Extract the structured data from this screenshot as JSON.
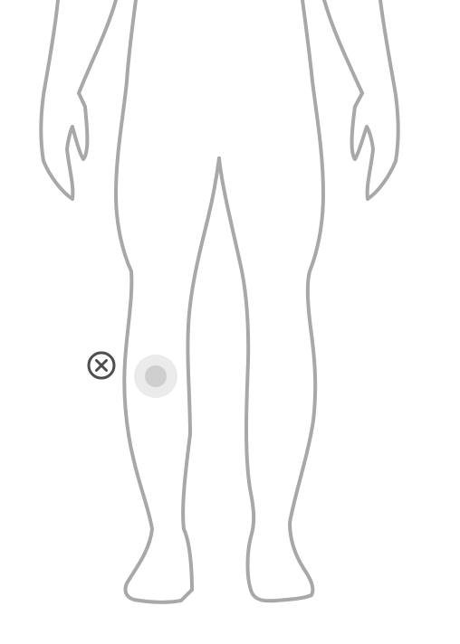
{
  "figure": {
    "view": "front-lower-body",
    "outline_color": "#a8a8a8",
    "background_color": "#ffffff"
  },
  "markers": [
    {
      "region": "left-knee",
      "halo_color": "#ebebeb",
      "dot_color": "#cfcfcf"
    }
  ],
  "remove_control": {
    "icon": "close-circle-icon",
    "color": "#4d4d4d"
  }
}
